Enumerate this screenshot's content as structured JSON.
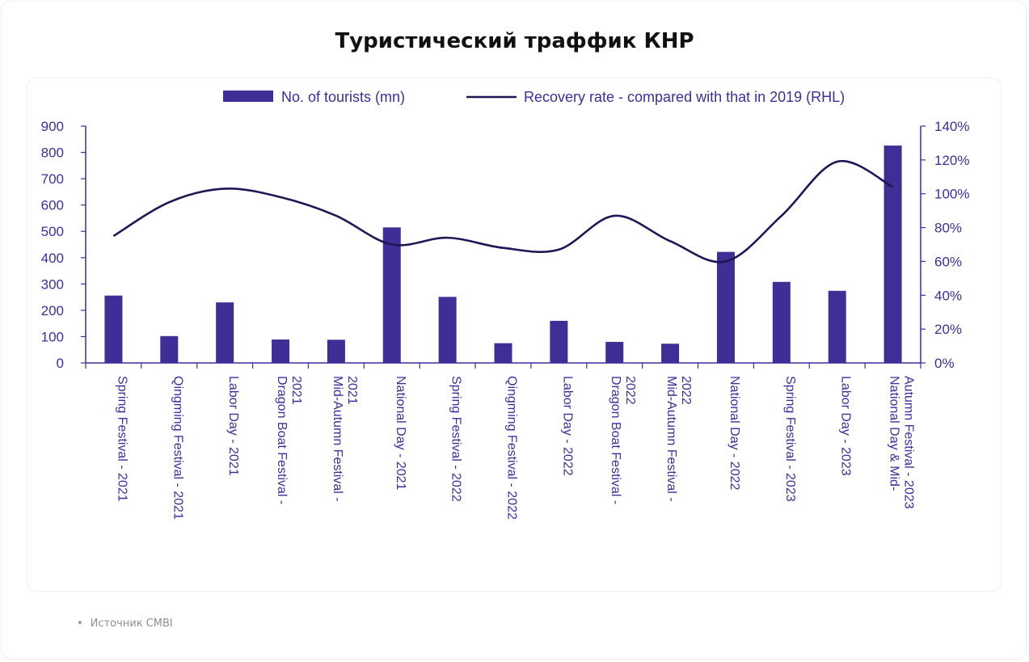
{
  "page": {
    "title": "Туристический траффик КНР",
    "source": "Источник CMBI"
  },
  "colors": {
    "bars": "#3d2f96",
    "line": "#1d1657",
    "text": "#3a2f9f"
  },
  "chart_data": {
    "type": "bar",
    "title": "",
    "legend_position": "top",
    "grid": false,
    "categories": [
      [
        "Spring Festival - 2021"
      ],
      [
        "Qingming Festival - 2021"
      ],
      [
        "Labor Day - 2021"
      ],
      [
        "Dragon Boat Festival -",
        "2021"
      ],
      [
        "Mid-Autumn Festival -",
        "2021"
      ],
      [
        "National Day - 2021"
      ],
      [
        "Spring Festival - 2022"
      ],
      [
        "Qingming Festival - 2022"
      ],
      [
        "Labor Day - 2022"
      ],
      [
        "Dragon Boat Festival -",
        "2022"
      ],
      [
        "Mid-Autumn Festival -",
        "2022"
      ],
      [
        "National Day - 2022"
      ],
      [
        "Spring Festival - 2023"
      ],
      [
        "Labor Day - 2023"
      ],
      [
        "National Day & Mid-",
        "Autumn Festival - 2023"
      ]
    ],
    "series": [
      {
        "name": "No. of tourists (mn)",
        "type": "bar",
        "axis": "left",
        "values": [
          256,
          102,
          230,
          89,
          88,
          515,
          251,
          75,
          160,
          80,
          73,
          422,
          308,
          274,
          826
        ]
      },
      {
        "name": "Recovery rate - compared with that in 2019 (RHL)",
        "type": "line",
        "axis": "right",
        "values": [
          75,
          95,
          103,
          98,
          87,
          70,
          74,
          68,
          67,
          87,
          72,
          60,
          87,
          119,
          104
        ]
      }
    ],
    "y_left": {
      "min": 0,
      "max": 900,
      "ticks": [
        "0",
        "100",
        "200",
        "300",
        "400",
        "500",
        "600",
        "700",
        "800",
        "900"
      ]
    },
    "y_right": {
      "min": 0,
      "max": 140,
      "ticks": [
        "0%",
        "20%",
        "40%",
        "60%",
        "80%",
        "100%",
        "120%",
        "140%"
      ]
    }
  }
}
